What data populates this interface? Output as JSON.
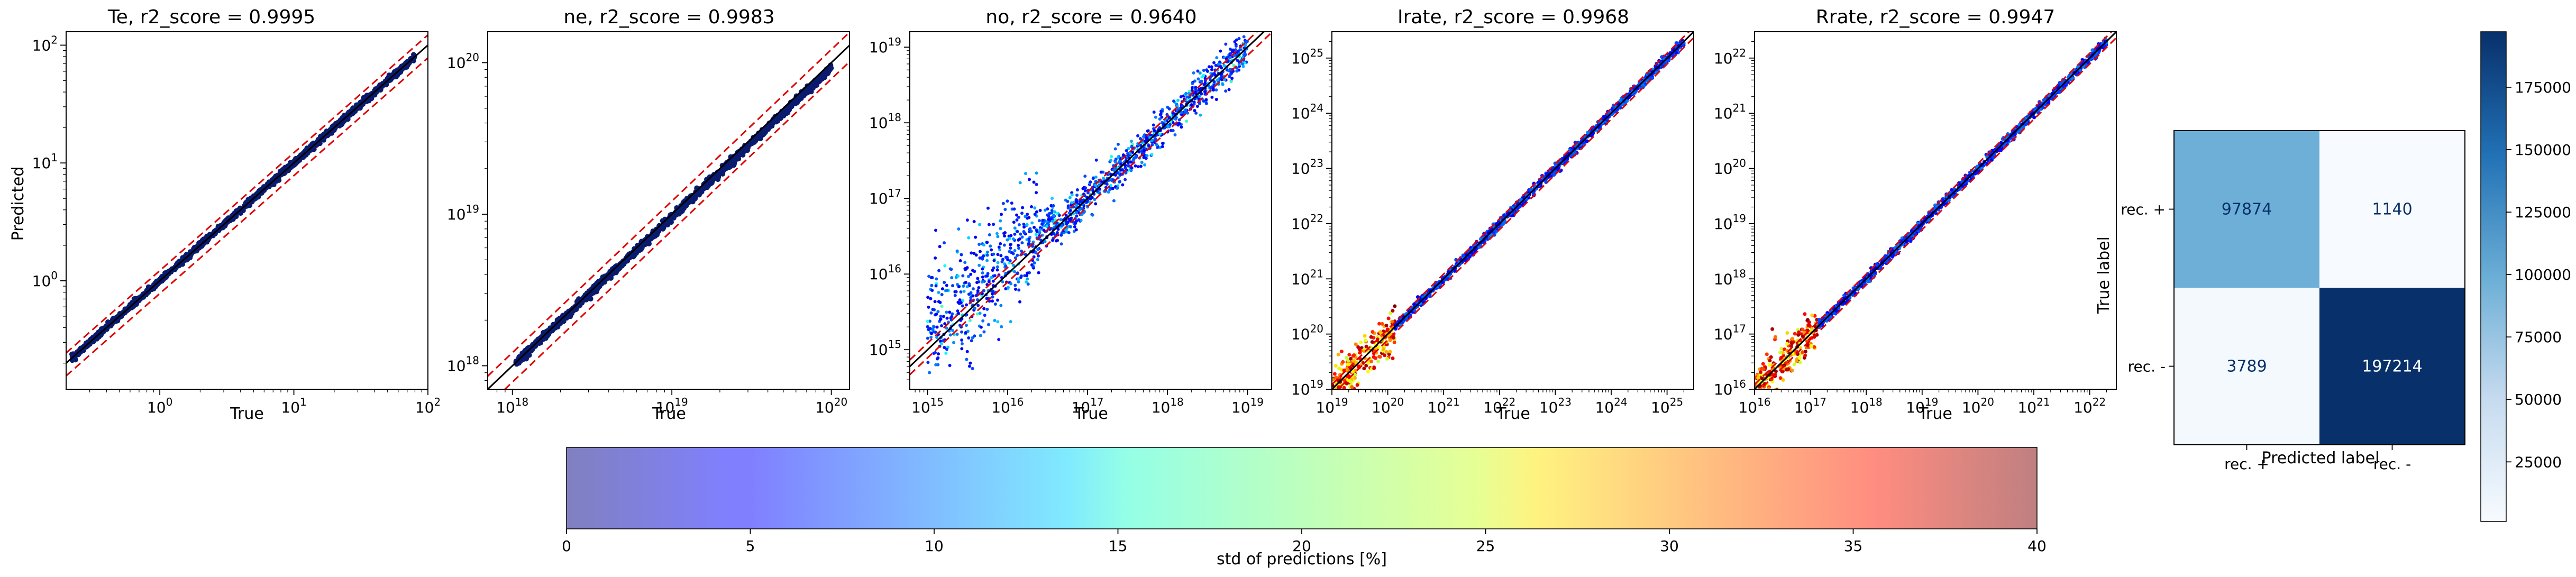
{
  "chart_data": [
    {
      "type": "scatter",
      "title": "Te, r2_score = 0.9995",
      "xlabel": "True",
      "ylabel": "Predicted",
      "scale": "log",
      "xlim": [
        0.2,
        100
      ],
      "ylim": [
        0.12,
        130
      ],
      "xticks": [
        {
          "base": "10",
          "exp": "0",
          "v": 1
        },
        {
          "base": "10",
          "exp": "1",
          "v": 10
        },
        {
          "base": "10",
          "exp": "2",
          "v": 100
        }
      ],
      "yticks": [
        {
          "base": "10",
          "exp": "0",
          "v": 1
        },
        {
          "base": "10",
          "exp": "1",
          "v": 10
        },
        {
          "base": "10",
          "exp": "2",
          "v": 100
        }
      ],
      "series": [
        {
          "x": [
            0.22,
            80
          ],
          "y": [
            0.22,
            80
          ]
        }
      ],
      "band": [
        0.78,
        1.22
      ],
      "point_color": "#0a1a6e"
    },
    {
      "type": "scatter",
      "title": "ne, r2_score = 0.9983",
      "xlabel": "True",
      "ylabel": "",
      "scale": "log",
      "xlim": [
        7e+17,
        1.3e+20
      ],
      "ylim": [
        7e+17,
        1.6e+20
      ],
      "xticks": [
        {
          "base": "10",
          "exp": "18",
          "v": 1e+18
        },
        {
          "base": "10",
          "exp": "19",
          "v": 1e+19
        },
        {
          "base": "10",
          "exp": "20",
          "v": 1e+20
        }
      ],
      "yticks": [
        {
          "base": "10",
          "exp": "18",
          "v": 1e+18
        },
        {
          "base": "10",
          "exp": "19",
          "v": 1e+19
        },
        {
          "base": "10",
          "exp": "20",
          "v": 1e+20
        }
      ],
      "series": [
        {
          "x": [
            1.05e+18,
            1e+20
          ],
          "y": [
            1.05e+18,
            9.2e+19
          ]
        }
      ],
      "band": [
        0.78,
        1.22
      ],
      "point_color": "#0a1a6e"
    },
    {
      "type": "scatter",
      "title": "no, r2_score = 0.9640",
      "xlabel": "True",
      "ylabel": "",
      "scale": "log",
      "xlim": [
        600000000000000.0,
        2e+19
      ],
      "ylim": [
        300000000000000.0,
        1.6e+19
      ],
      "xticks": [
        {
          "base": "10",
          "exp": "15",
          "v": 1000000000000000.0
        },
        {
          "base": "10",
          "exp": "16",
          "v": 1e+16
        },
        {
          "base": "10",
          "exp": "17",
          "v": 1e+17
        },
        {
          "base": "10",
          "exp": "18",
          "v": 1e+18
        },
        {
          "base": "10",
          "exp": "19",
          "v": 1e+19
        }
      ],
      "yticks": [
        {
          "base": "10",
          "exp": "15",
          "v": 1000000000000000.0
        },
        {
          "base": "10",
          "exp": "16",
          "v": 1e+16
        },
        {
          "base": "10",
          "exp": "17",
          "v": 1e+17
        },
        {
          "base": "10",
          "exp": "18",
          "v": 1e+18
        },
        {
          "base": "10",
          "exp": "19",
          "v": 1e+19
        }
      ],
      "series": [
        {
          "x": [
            1000000000000000.0,
            1e+19
          ],
          "y": [
            1000000000000000.0,
            1e+19
          ]
        }
      ],
      "band": [
        0.78,
        1.22
      ],
      "point_color": "#1530e0"
    },
    {
      "type": "scatter",
      "title": "Irate, r2_score = 0.9968",
      "xlabel": "True",
      "ylabel": "",
      "scale": "log",
      "xlim": [
        1e+19,
        3e+25
      ],
      "ylim": [
        1e+19,
        3e+25
      ],
      "xticks": [
        {
          "base": "10",
          "exp": "19",
          "v": 1e+19
        },
        {
          "base": "10",
          "exp": "20",
          "v": 1e+20
        },
        {
          "base": "10",
          "exp": "21",
          "v": 1e+21
        },
        {
          "base": "10",
          "exp": "22",
          "v": 1e+22
        },
        {
          "base": "10",
          "exp": "23",
          "v": 1e+23
        },
        {
          "base": "10",
          "exp": "24",
          "v": 1e+24
        },
        {
          "base": "10",
          "exp": "25",
          "v": 1e+25
        }
      ],
      "yticks": [
        {
          "base": "10",
          "exp": "19",
          "v": 1e+19
        },
        {
          "base": "10",
          "exp": "20",
          "v": 1e+20
        },
        {
          "base": "10",
          "exp": "21",
          "v": 1e+21
        },
        {
          "base": "10",
          "exp": "22",
          "v": 1e+22
        },
        {
          "base": "10",
          "exp": "23",
          "v": 1e+23
        },
        {
          "base": "10",
          "exp": "24",
          "v": 1e+24
        },
        {
          "base": "10",
          "exp": "25",
          "v": 1e+25
        }
      ],
      "series": [
        {
          "x": [
            1e+19,
            2e+25
          ],
          "y": [
            1e+19,
            2e+25
          ]
        }
      ],
      "band": [
        0.78,
        1.22
      ],
      "point_color": "#1530e0"
    },
    {
      "type": "scatter",
      "title": "Rrate, r2_score = 0.9947",
      "xlabel": "True",
      "ylabel": "",
      "scale": "log",
      "xlim": [
        1e+16,
        3e+22
      ],
      "ylim": [
        1e+16,
        3e+22
      ],
      "xticks": [
        {
          "base": "10",
          "exp": "16",
          "v": 1e+16
        },
        {
          "base": "10",
          "exp": "17",
          "v": 1e+17
        },
        {
          "base": "10",
          "exp": "18",
          "v": 1e+18
        },
        {
          "base": "10",
          "exp": "19",
          "v": 1e+19
        },
        {
          "base": "10",
          "exp": "20",
          "v": 1e+20
        },
        {
          "base": "10",
          "exp": "21",
          "v": 1e+21
        },
        {
          "base": "10",
          "exp": "22",
          "v": 1e+22
        }
      ],
      "yticks": [
        {
          "base": "10",
          "exp": "16",
          "v": 1e+16
        },
        {
          "base": "10",
          "exp": "17",
          "v": 1e+17
        },
        {
          "base": "10",
          "exp": "18",
          "v": 1e+18
        },
        {
          "base": "10",
          "exp": "19",
          "v": 1e+19
        },
        {
          "base": "10",
          "exp": "20",
          "v": 1e+20
        },
        {
          "base": "10",
          "exp": "21",
          "v": 1e+21
        },
        {
          "base": "10",
          "exp": "22",
          "v": 1e+22
        }
      ],
      "series": [
        {
          "x": [
            1e+16,
            2e+22
          ],
          "y": [
            1e+16,
            2e+22
          ]
        }
      ],
      "band": [
        0.78,
        1.22
      ],
      "point_color": "#1530e0"
    },
    {
      "type": "heatmap",
      "title": "",
      "xlabel": "Predicted label",
      "ylabel": "True label",
      "x_categories": [
        "rec. +",
        "rec. -"
      ],
      "y_categories": [
        "rec. +",
        "rec. -"
      ],
      "values": [
        [
          97874,
          1140
        ],
        [
          3789,
          197214
        ]
      ],
      "colormap": "Blues",
      "colorbar_ticks": [
        "25000",
        "50000",
        "75000",
        "100000",
        "125000",
        "150000",
        "175000"
      ],
      "colorbar_tick_values": [
        25000,
        50000,
        75000,
        100000,
        125000,
        150000,
        175000
      ],
      "colorbar_range": [
        1140,
        197214
      ]
    }
  ],
  "colorbar": {
    "label": "std of predictions [%]",
    "ticks": [
      "0",
      "5",
      "10",
      "15",
      "20",
      "25",
      "30",
      "35",
      "40"
    ],
    "range": [
      0,
      40
    ],
    "colormap": "jet"
  },
  "colors": {
    "identity_line": "#000000",
    "band_line": "#e00000"
  }
}
